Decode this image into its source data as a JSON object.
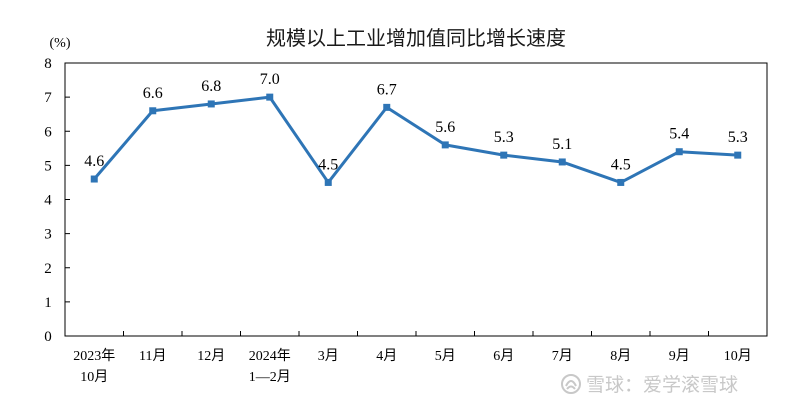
{
  "chart_data": {
    "type": "line",
    "title": "规模以上工业增加值同比增长速度",
    "ylabel": "(%)",
    "xlabel": "",
    "ylim": [
      0,
      8
    ],
    "yticks": [
      "0",
      "1",
      "2",
      "3",
      "4",
      "5",
      "6",
      "7",
      "8"
    ],
    "categories": [
      "2023年\n10月",
      "11月",
      "12月",
      "2024年\n1—2月",
      "3月",
      "4月",
      "5月",
      "6月",
      "7月",
      "8月",
      "9月",
      "10月"
    ],
    "series": [
      {
        "name": "",
        "values": [
          4.6,
          6.6,
          6.8,
          7.0,
          4.5,
          6.7,
          5.6,
          5.3,
          5.1,
          4.5,
          5.4,
          5.3
        ],
        "labels": [
          "4.6",
          "6.6",
          "6.8",
          "7.0",
          "4.5",
          "6.7",
          "5.6",
          "5.3",
          "5.1",
          "4.5",
          "5.4",
          "5.3"
        ]
      }
    ],
    "grid": false,
    "colors": {
      "line": "#2e75b6",
      "axis": "#000000"
    }
  },
  "watermark": {
    "text": "雪球：爱学滚雪球",
    "icon": "snowball-logo-icon"
  }
}
